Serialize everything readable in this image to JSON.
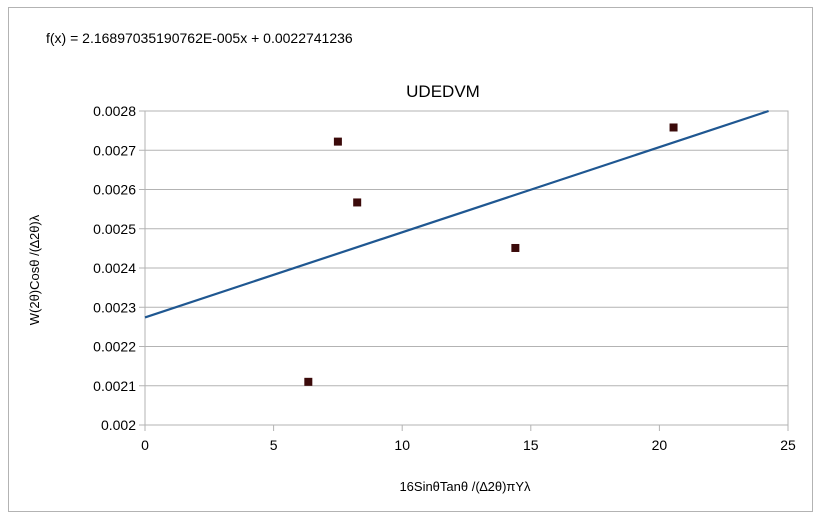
{
  "chart_data": {
    "type": "scatter",
    "title": "UDEDVM",
    "equation": "f(x) = 2.16897035190762E-005x + 0.0022741236",
    "xlabel": "16SinθTanθ /(∆2θ)πYλ",
    "ylabel": "W(2θ)Cosθ /(∆2θ)λ",
    "xlim": [
      0,
      25
    ],
    "ylim": [
      0.002,
      0.0028
    ],
    "x_ticks": [
      "0",
      "5",
      "10",
      "15",
      "20",
      "25"
    ],
    "y_ticks": [
      "0.002",
      "0.0021",
      "0.0022",
      "0.0023",
      "0.0024",
      "0.0025",
      "0.0026",
      "0.0027",
      "0.0028"
    ],
    "grid": "horizontal",
    "series": [
      {
        "color": "#3b0a0a",
        "points": [
          {
            "x": 6.35,
            "y": 0.00211
          },
          {
            "x": 7.5,
            "y": 0.002722
          },
          {
            "x": 8.25,
            "y": 0.002567
          },
          {
            "x": 14.4,
            "y": 0.002451
          },
          {
            "x": 20.55,
            "y": 0.002758
          }
        ]
      }
    ],
    "trendline": {
      "slope": 2.16897035190762e-05,
      "intercept": 0.0022741236,
      "color": "#1f5791"
    }
  }
}
